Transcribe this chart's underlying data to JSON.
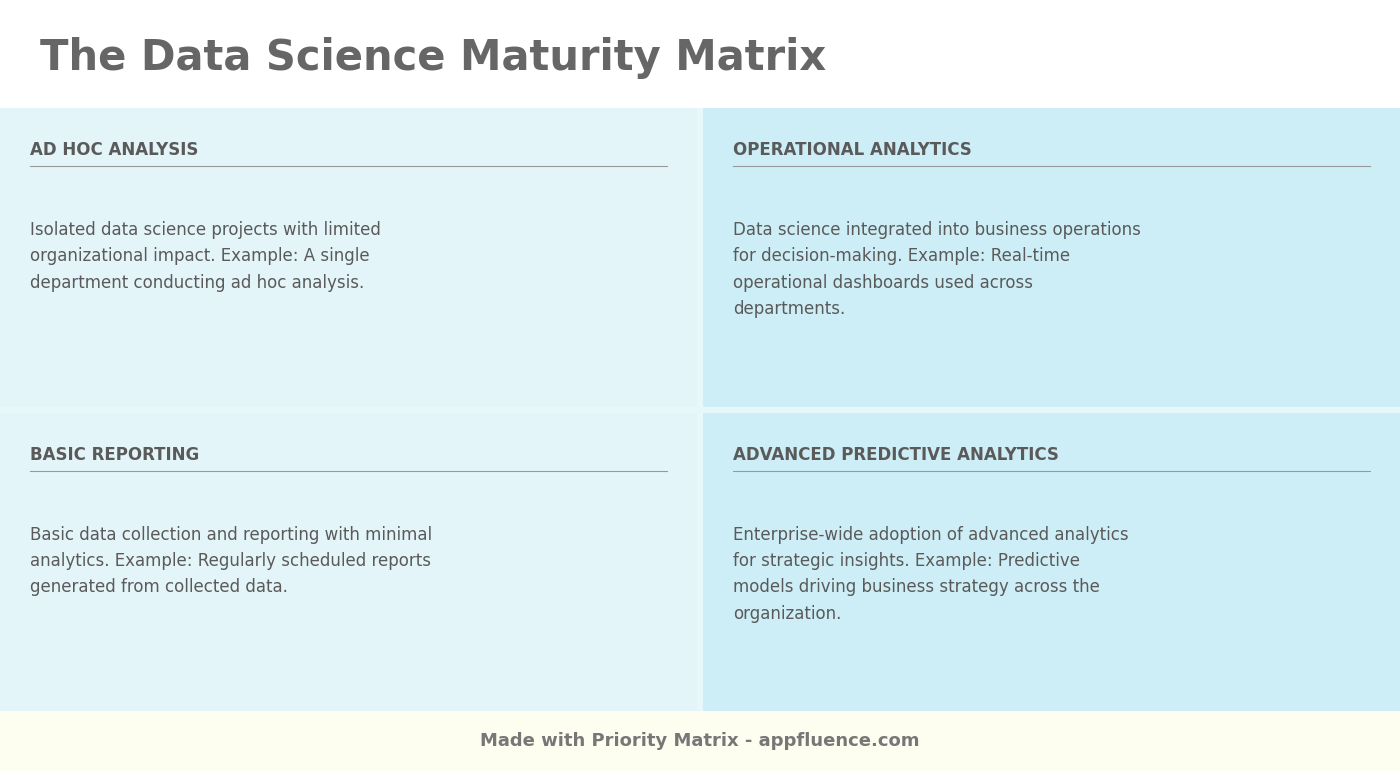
{
  "title": "The Data Science Maturity Matrix",
  "title_fontsize": 30,
  "title_color": "#666666",
  "title_fontweight": "bold",
  "footer": "Made with Priority Matrix - appfluence.com",
  "footer_fontsize": 13,
  "footer_color": "#777777",
  "background_color": "#ffffff",
  "footer_bg": "#fdfdf0",
  "matrix_outer_bg": "#e8f7fa",
  "divider_color": "#999999",
  "gap_color": "#b0d8e0",
  "quadrants": [
    {
      "title": "AD HOC ANALYSIS",
      "body": "Isolated data science projects with limited\norganizational impact. Example: A single\ndepartment conducting ad hoc analysis.",
      "row": 0,
      "col": 0,
      "bg": "#e4f5f9"
    },
    {
      "title": "OPERATIONAL ANALYTICS",
      "body": "Data science integrated into business operations\nfor decision-making. Example: Real-time\noperational dashboards used across\ndepartments.",
      "row": 0,
      "col": 1,
      "bg": "#cdeef6"
    },
    {
      "title": "BASIC REPORTING",
      "body": "Basic data collection and reporting with minimal\nanalytics. Example: Regularly scheduled reports\ngenerated from collected data.",
      "row": 1,
      "col": 0,
      "bg": "#e4f5f9"
    },
    {
      "title": "ADVANCED PREDICTIVE ANALYTICS",
      "body": "Enterprise-wide adoption of advanced analytics\nfor strategic insights. Example: Predictive\nmodels driving business strategy across the\norganization.",
      "row": 1,
      "col": 1,
      "bg": "#cdeef6"
    }
  ],
  "quadrant_title_fontsize": 12,
  "quadrant_title_color": "#5a5a5a",
  "quadrant_body_fontsize": 12,
  "quadrant_body_color": "#5a5a5a"
}
